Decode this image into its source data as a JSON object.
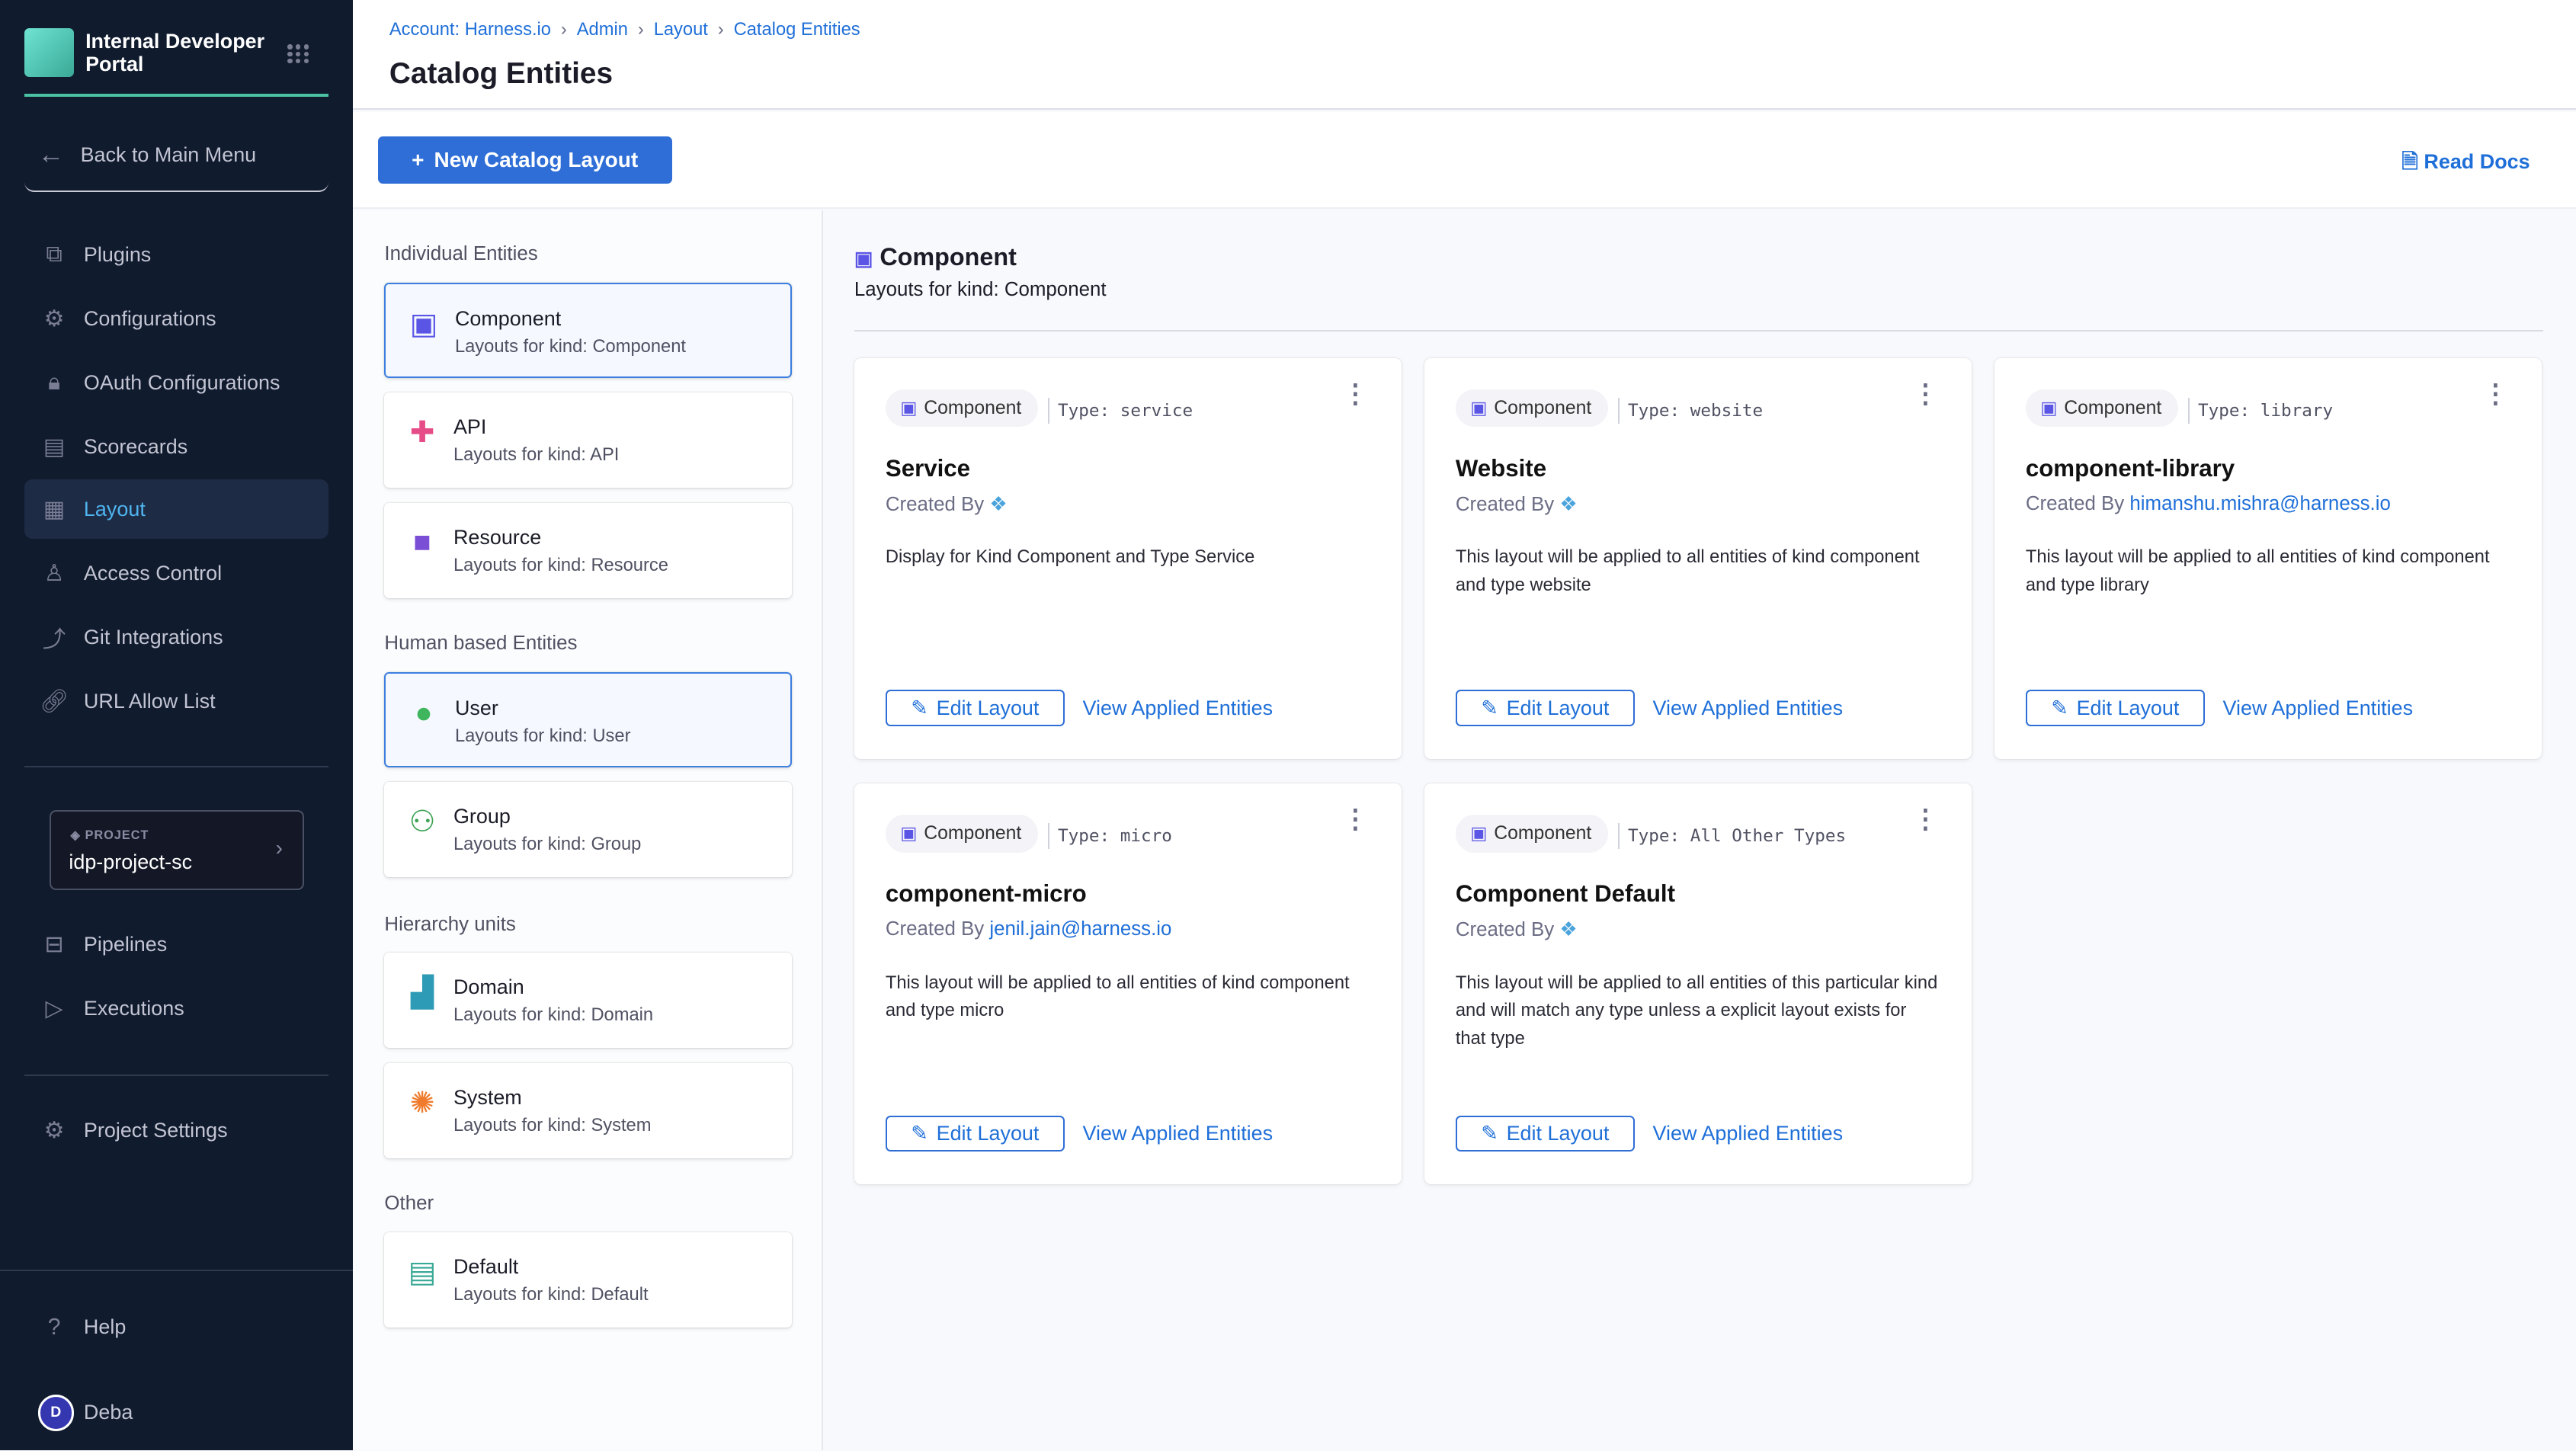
{
  "sidebar": {
    "app_title_line1": "Internal Developer",
    "app_title_line2": "Portal",
    "back_label": "Back to Main Menu",
    "items": [
      {
        "label": "Plugins",
        "icon": "puzzle-icon"
      },
      {
        "label": "Configurations",
        "icon": "gears-icon"
      },
      {
        "label": "OAuth Configurations",
        "icon": "lock-icon"
      },
      {
        "label": "Scorecards",
        "icon": "scorecard-icon"
      },
      {
        "label": "Layout",
        "icon": "layout-icon",
        "active": true
      },
      {
        "label": "Access Control",
        "icon": "user-icon"
      },
      {
        "label": "Git Integrations",
        "icon": "git-icon"
      },
      {
        "label": "URL Allow List",
        "icon": "link-icon"
      }
    ],
    "project": {
      "label": "PROJECT",
      "value": "idp-project-sc"
    },
    "project_items": [
      {
        "label": "Pipelines",
        "icon": "pipeline-icon"
      },
      {
        "label": "Executions",
        "icon": "execution-icon"
      }
    ],
    "settings_label": "Project Settings",
    "help_label": "Help",
    "user": {
      "initial": "D",
      "name": "Deba"
    }
  },
  "header": {
    "breadcrumbs": [
      "Account: Harness.io",
      "Admin",
      "Layout",
      "Catalog Entities"
    ],
    "title": "Catalog Entities"
  },
  "toolbar": {
    "new_button": "New Catalog Layout",
    "read_docs": "Read Docs"
  },
  "entities": {
    "sections": [
      {
        "title": "Individual Entities",
        "items": [
          {
            "name": "Component",
            "desc": "Layouts for kind: Component",
            "selected": true
          },
          {
            "name": "API",
            "desc": "Layouts for kind: API"
          },
          {
            "name": "Resource",
            "desc": "Layouts for kind: Resource"
          }
        ]
      },
      {
        "title": "Human based Entities",
        "items": [
          {
            "name": "User",
            "desc": "Layouts for kind: User",
            "selected": true
          },
          {
            "name": "Group",
            "desc": "Layouts for kind: Group"
          }
        ]
      },
      {
        "title": "Hierarchy units",
        "items": [
          {
            "name": "Domain",
            "desc": "Layouts for kind: Domain"
          },
          {
            "name": "System",
            "desc": "Layouts for kind: System"
          }
        ]
      },
      {
        "title": "Other",
        "items": [
          {
            "name": "Default",
            "desc": "Layouts for kind: Default"
          }
        ]
      }
    ]
  },
  "main": {
    "heading": "Component",
    "subheading": "Layouts for kind: Component",
    "cards": [
      {
        "kind": "Component",
        "type": "Type: service",
        "title": "Service",
        "created_by": "Created By",
        "author": "",
        "desc": "Display for Kind Component and Type Service",
        "edit": "Edit Layout",
        "view": "View Applied Entities"
      },
      {
        "kind": "Component",
        "type": "Type: website",
        "title": "Website",
        "created_by": "Created By",
        "author": "",
        "desc": "This layout will be applied to all entities of kind component and type website",
        "edit": "Edit Layout",
        "view": "View Applied Entities"
      },
      {
        "kind": "Component",
        "type": "Type: library",
        "title": "component-library",
        "created_by": "Created By",
        "author": "himanshu.mishra@harness.io",
        "desc": "This layout will be applied to all entities of kind component and type library",
        "edit": "Edit Layout",
        "view": "View Applied Entities"
      },
      {
        "kind": "Component",
        "type": "Type: micro",
        "title": "component-micro",
        "created_by": "Created By",
        "author": "jenil.jain@harness.io",
        "desc": "This layout will be applied to all entities of kind component and type micro",
        "edit": "Edit Layout",
        "view": "View Applied Entities"
      },
      {
        "kind": "Component",
        "type": "Type: All Other Types",
        "title": "Component Default",
        "created_by": "Created By",
        "author": "",
        "desc": "This layout will be applied to all entities of this particular kind and will match any type unless a explicit layout exists for that type",
        "edit": "Edit Layout",
        "view": "View Applied Entities"
      }
    ]
  },
  "colors": {
    "sidebar_bg": "#101b2e",
    "accent": "#2e6ed6",
    "active_nav": "#4fb4f0",
    "teal": "#4bc2a3"
  }
}
